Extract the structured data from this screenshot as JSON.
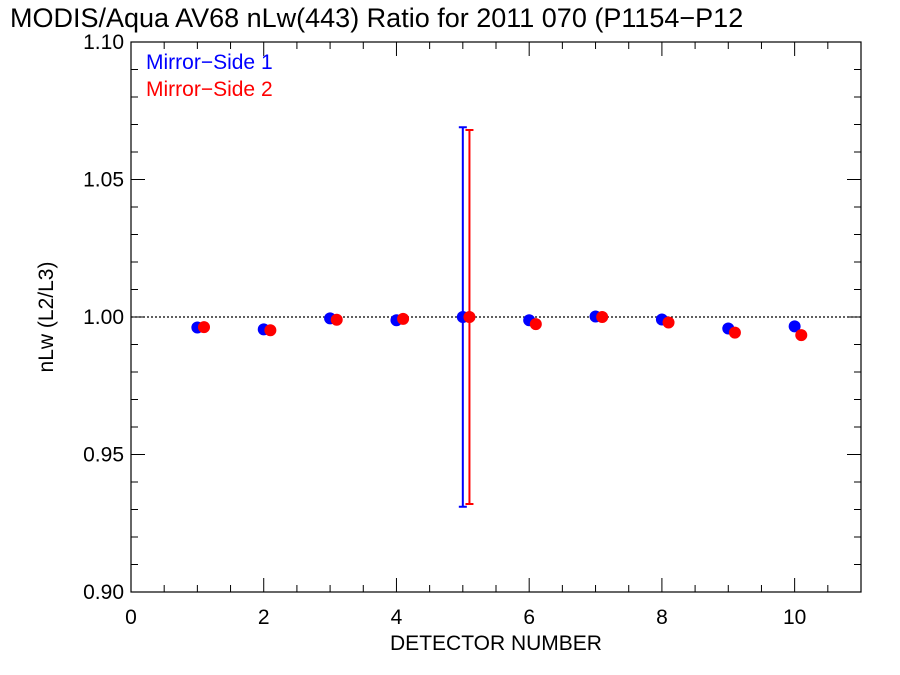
{
  "chart_data": {
    "type": "scatter",
    "title": "MODIS/Aqua AV68 nLw(443) Ratio for 2011 070 (P1154−P12",
    "xlabel": "DETECTOR NUMBER",
    "ylabel": "nLw (L2/L3)",
    "xlim": [
      0,
      11
    ],
    "ylim": [
      0.9,
      1.1
    ],
    "x_ticks": [
      0,
      2,
      4,
      6,
      8,
      10
    ],
    "x_tick_labels": [
      "0",
      "2",
      "4",
      "6",
      "8",
      "10"
    ],
    "y_ticks": [
      0.9,
      0.95,
      1.0,
      1.05,
      1.1
    ],
    "y_tick_labels": [
      "0.90",
      "0.95",
      "1.00",
      "1.05",
      "1.10"
    ],
    "reference_line": 1.0,
    "legend_position": "top-left",
    "series": [
      {
        "name": "Mirror−Side 1",
        "color": "#0000ff",
        "x": [
          1,
          2,
          3,
          4,
          5,
          6,
          7,
          8,
          9,
          10
        ],
        "y": [
          0.9962,
          0.9955,
          0.9995,
          0.9988,
          1.0,
          0.9988,
          1.0002,
          0.9991,
          0.9958,
          0.9966
        ],
        "error_bars": [
          {
            "x": 5,
            "low": 0.931,
            "high": 1.069
          }
        ]
      },
      {
        "name": "Mirror−Side 2",
        "color": "#ff0000",
        "x": [
          1.1,
          2.1,
          3.1,
          4.1,
          5.1,
          6.1,
          7.1,
          8.1,
          9.1,
          10.1
        ],
        "y": [
          0.9963,
          0.9952,
          0.999,
          0.9993,
          1.0,
          0.9974,
          1.0,
          0.998,
          0.9943,
          0.9934
        ],
        "error_bars": [
          {
            "x": 5.1,
            "low": 0.932,
            "high": 1.068
          }
        ]
      }
    ]
  }
}
